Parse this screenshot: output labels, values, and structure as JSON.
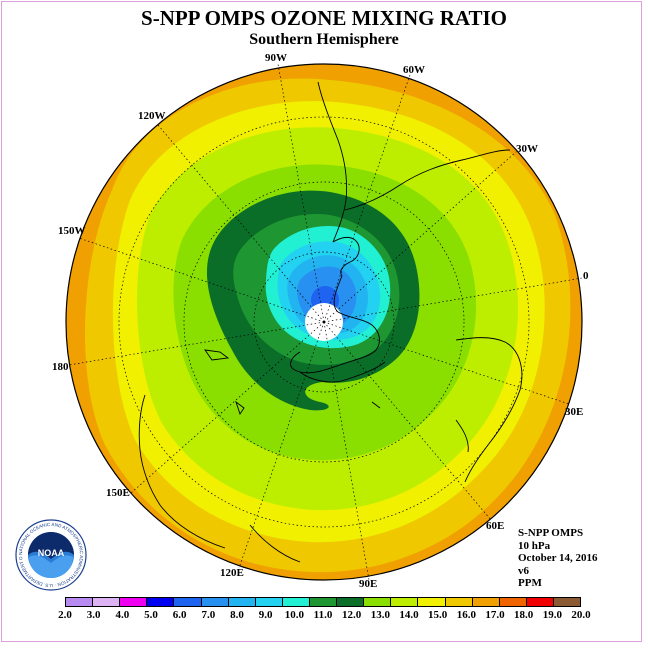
{
  "title": "S-NPP OMPS OZONE MIXING RATIO",
  "subtitle": "Southern Hemisphere",
  "logo": {
    "text": "NOAA",
    "ring_text": "NATIONAL OCEANIC AND ATMOSPHERIC ADMINISTRATION · U.S. DEPARTMENT OF COMMERCE"
  },
  "info": {
    "instrument": "S-NPP OMPS",
    "level": "10 hPa",
    "date": "October 14, 2016",
    "version": "v6",
    "units": "PPM"
  },
  "lon_labels": [
    "90W",
    "60W",
    "30W",
    "0",
    "30E",
    "60E",
    "90E",
    "120E",
    "150E",
    "180",
    "150W",
    "120W"
  ],
  "colorbar": {
    "ticks": [
      "2.0",
      "3.0",
      "4.0",
      "5.0",
      "6.0",
      "7.0",
      "8.0",
      "9.0",
      "10.0",
      "11.0",
      "12.0",
      "13.0",
      "14.0",
      "15.0",
      "16.0",
      "17.0",
      "18.0",
      "19.0",
      "20.0"
    ],
    "colors": [
      "#b88bf0",
      "#ddb3f3",
      "#f000f0",
      "#0000f0",
      "#1e64f0",
      "#2890f0",
      "#22b4f0",
      "#22d2f0",
      "#22f0d2",
      "#1e9632",
      "#0a6e28",
      "#8ade00",
      "#bdee00",
      "#f0f000",
      "#f0c800",
      "#f0a000",
      "#f06400",
      "#f00000",
      "#8b5a32"
    ]
  }
}
